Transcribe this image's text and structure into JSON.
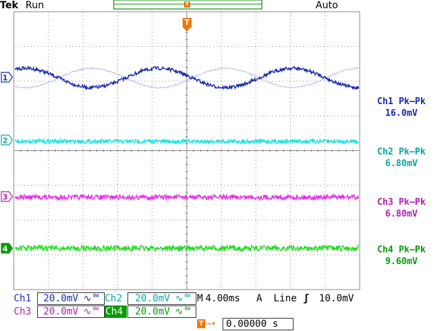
{
  "header": {
    "brand": "Tek",
    "acq_state": "Run",
    "trigger_mode": "Auto"
  },
  "trigger": {
    "marker": "T",
    "level_marker": "T"
  },
  "channels": [
    {
      "id": "ch1",
      "number": "1",
      "color": "#1a2aaa",
      "ghost_color": "#c4c8ee",
      "meas_label": "Ch1 Pk–Pk",
      "meas_value": "16.0mV",
      "scale": "20.0mV"
    },
    {
      "id": "ch2",
      "number": "2",
      "color": "#12e2e2",
      "meas_label": "Ch2 Pk–Pk",
      "meas_value": "6.80mV",
      "scale": "20.0mV"
    },
    {
      "id": "ch3",
      "number": "3",
      "color": "#ea2aea",
      "meas_label": "Ch3 Pk–Pk",
      "meas_value": "6.80mV",
      "scale": "20.0mV"
    },
    {
      "id": "ch4",
      "number": "4",
      "color": "#22dd22",
      "meas_label": "Ch4 Pk–Pk",
      "meas_value": "9.60mV",
      "scale": "20.0mV"
    }
  ],
  "status": {
    "ch1_label": "Ch1",
    "ch1_scale": "20.0mV",
    "ch2_label": "Ch2",
    "ch2_scale": "20.0mV",
    "ch3_label": "Ch3",
    "ch3_scale": "20.0mV",
    "ch4_label": "Ch4",
    "ch4_scale": "20.0mV",
    "coupling_symbol": "∿",
    "bw_symbol": "BW",
    "timebase_prefix": "M",
    "timebase": "4.00ms",
    "trig_source_prefix": "A",
    "trig_source": "Line",
    "trig_slope": "ʃ",
    "trig_level": "10.0mV",
    "delay_marker": "T",
    "delay_arrow": "→▾",
    "delay_value": "0.00000 s"
  },
  "colors": {
    "orange": "#f07810",
    "grid": "#888888"
  }
}
